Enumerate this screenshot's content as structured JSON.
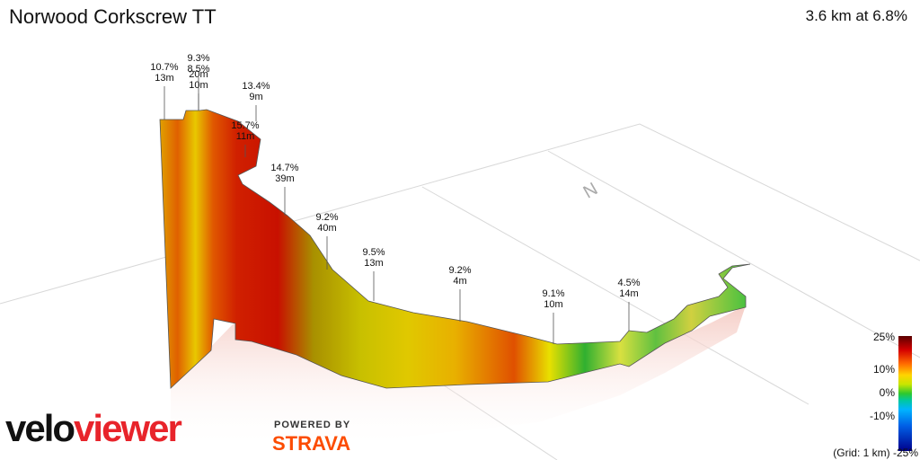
{
  "header": {
    "title": "Norwood Corkscrew TT",
    "summary": "3.6 km at 6.8%"
  },
  "chart_data": {
    "type": "3d-elevation-profile",
    "title": "Norwood Corkscrew TT",
    "summary": "3.6 km at 6.8%",
    "segments": [
      {
        "gradient": "10.7%",
        "gain": "13m"
      },
      {
        "gradient": "9.3%",
        "gain": "8.5%"
      },
      {
        "gradient": "20m",
        "gain": "10m"
      },
      {
        "gradient": "13.4%",
        "gain": "9m"
      },
      {
        "gradient": "15.7%",
        "gain": "11m"
      },
      {
        "gradient": "14.7%",
        "gain": "39m"
      },
      {
        "gradient": "9.2%",
        "gain": "40m"
      },
      {
        "gradient": "9.5%",
        "gain": "13m"
      },
      {
        "gradient": "9.2%",
        "gain": "4m"
      },
      {
        "gradient": "9.1%",
        "gain": "10m"
      },
      {
        "gradient": "4.5%",
        "gain": "14m"
      }
    ],
    "legend": {
      "scale_labels": [
        "25%",
        "10%",
        "0%",
        "-10%",
        "-25%"
      ],
      "note": "(Grid: 1 km)",
      "colors": [
        "#5a0000",
        "#d40000",
        "#ff6a00",
        "#ffd400",
        "#2ec82e",
        "#00b4ff",
        "#00008c"
      ]
    },
    "grid": "on"
  },
  "branding": {
    "logo_part1": "velo",
    "logo_part2": "viewer",
    "powered_by": "POWERED BY",
    "strava": "STRAVA"
  },
  "compass": "N"
}
